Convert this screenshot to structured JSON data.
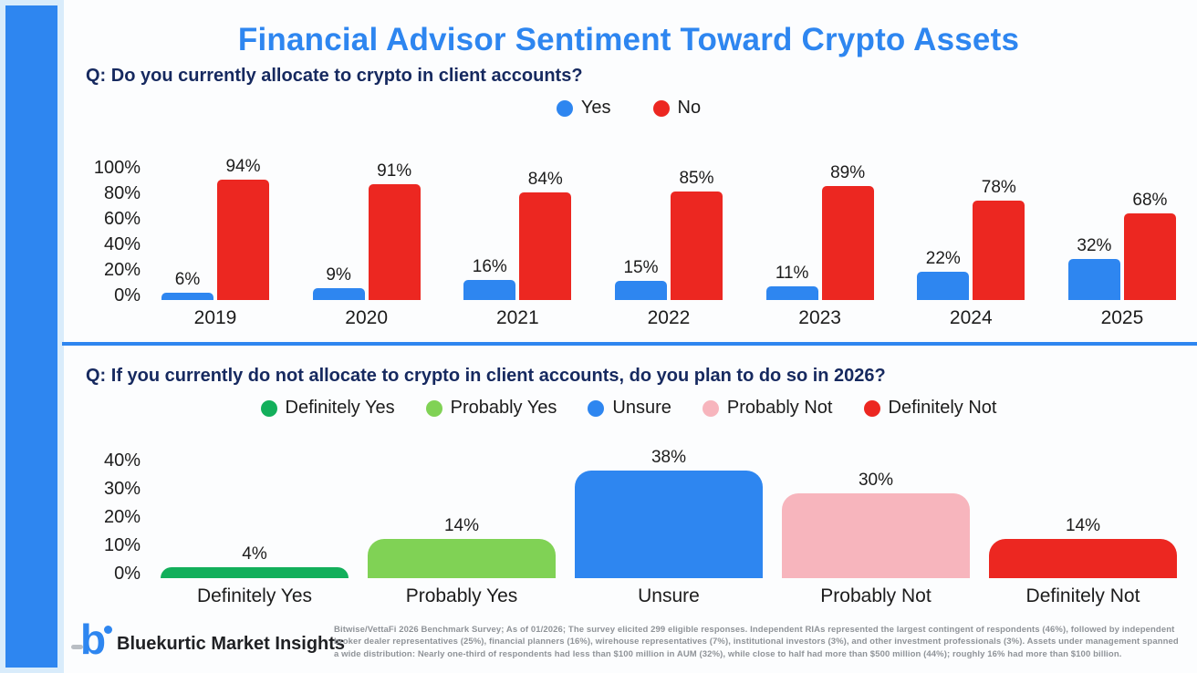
{
  "title": "Financial Advisor Sentiment Toward Crypto Assets",
  "colors": {
    "accent_blue": "#2E86F0",
    "red": "#EC2721",
    "green": "#13AF5B",
    "light_green": "#80D255",
    "pink": "#F7B5BD",
    "navy_text": "#16295F",
    "note_gray": "#8F9398"
  },
  "chart_data": [
    {
      "type": "bar",
      "title": "Q: Do you currently allocate to crypto in client accounts?",
      "categories": [
        "2019",
        "2020",
        "2021",
        "2022",
        "2023",
        "2024",
        "2025"
      ],
      "series": [
        {
          "name": "Yes",
          "color": "#2E86F0",
          "values": [
            6,
            9,
            16,
            15,
            11,
            22,
            32
          ]
        },
        {
          "name": "No",
          "color": "#EC2721",
          "values": [
            94,
            91,
            84,
            85,
            89,
            78,
            68
          ]
        }
      ],
      "legend": [
        {
          "label": "Yes",
          "color": "#2E86F0"
        },
        {
          "label": "No",
          "color": "#EC2721"
        }
      ],
      "yticks": [
        100,
        80,
        60,
        40,
        20,
        0
      ],
      "ylim": [
        0,
        100
      ],
      "ytick_suffix": "%",
      "value_label_suffix": "%",
      "grid": false,
      "legend_position": "top-center"
    },
    {
      "type": "bar",
      "title": "Q: If you currently do not allocate to crypto in client accounts, do you plan to do so in 2026?",
      "categories": [
        "Definitely Yes",
        "Probably Yes",
        "Unsure",
        "Probably Not",
        "Definitely Not"
      ],
      "series": [
        {
          "name": "Plan for 2026",
          "values": [
            4,
            14,
            38,
            30,
            14
          ],
          "colors": [
            "#13AF5B",
            "#80D255",
            "#2E86F0",
            "#F7B5BD",
            "#EC2721"
          ]
        }
      ],
      "legend": [
        {
          "label": "Definitely Yes",
          "color": "#13AF5B"
        },
        {
          "label": "Probably Yes",
          "color": "#80D255"
        },
        {
          "label": "Unsure",
          "color": "#2E86F0"
        },
        {
          "label": "Probably Not",
          "color": "#F7B5BD"
        },
        {
          "label": "Definitely Not",
          "color": "#EC2721"
        }
      ],
      "yticks": [
        40,
        30,
        20,
        10,
        0
      ],
      "ylim": [
        0,
        40
      ],
      "ytick_suffix": "%",
      "value_label_suffix": "%",
      "grid": false,
      "legend_position": "top-center"
    }
  ],
  "footer": {
    "logo_letter": "b",
    "brand": "Bluekurtic Market Insights",
    "note_lines": [
      "Bitwise/VettaFi 2026 Benchmark Survey; As of 01/2026; The survey elicited 299 eligible responses. Independent RIAs represented the largest contingent of respondents (46%), followed by independent",
      "broker dealer representatives (25%), financial planners (16%), wirehouse representatives (7%), institutional investors (3%), and other investment professionals (3%). Assets under management spanned",
      "a wide distribution: Nearly one-third of respondents had less than $100 million in AUM (32%), while close to half had more than $500 million (44%); roughly 16% had more than $100 billion."
    ]
  }
}
